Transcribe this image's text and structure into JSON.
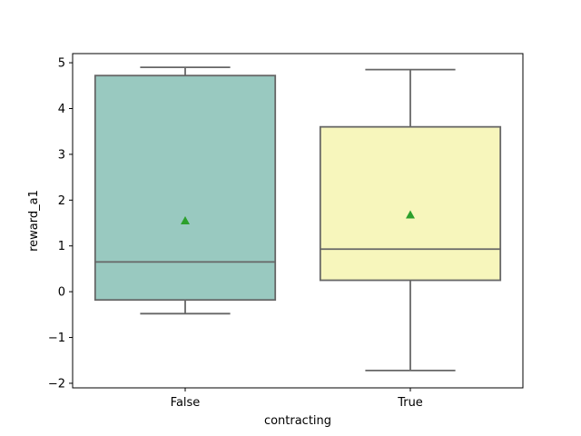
{
  "chart_data": {
    "type": "box",
    "title": "",
    "xlabel": "contracting",
    "ylabel": "reward_a1",
    "ylim": [
      -2.1,
      5.2
    ],
    "yticks": [
      -2,
      -1,
      0,
      1,
      2,
      3,
      4,
      5
    ],
    "categories": [
      "False",
      "True"
    ],
    "boxes": [
      {
        "category": "False",
        "whisker_low": -0.48,
        "q1": -0.18,
        "median": 0.65,
        "q3": 4.72,
        "whisker_high": 4.9,
        "mean": 1.55,
        "color": "#99c9c0"
      },
      {
        "category": "True",
        "whisker_low": -1.72,
        "q1": 0.25,
        "median": 0.93,
        "q3": 3.6,
        "whisker_high": 4.85,
        "mean": 1.68,
        "color": "#f7f6bc"
      }
    ],
    "line_color": "#666666",
    "mean_marker_color": "#2ca02c",
    "grid": false,
    "legend": "none"
  }
}
